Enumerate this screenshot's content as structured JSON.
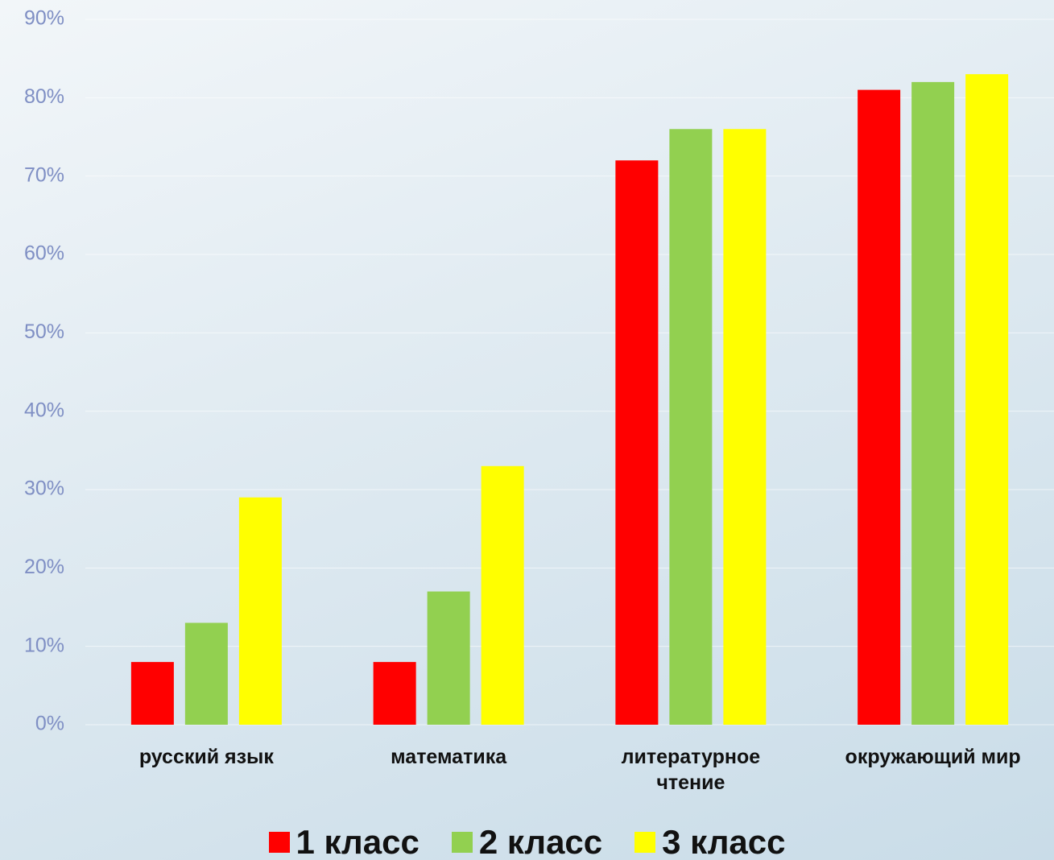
{
  "chart_data": {
    "type": "bar",
    "categories": [
      "русский язык",
      "математика",
      "литературное чтение",
      "окружающий мир"
    ],
    "series": [
      {
        "name": "1 класс",
        "color": "#ff0000",
        "values": [
          8,
          8,
          72,
          81
        ]
      },
      {
        "name": "2 класс",
        "color": "#92d050",
        "values": [
          13,
          17,
          76,
          82
        ]
      },
      {
        "name": "3 класс",
        "color": "#ffff00",
        "values": [
          29,
          33,
          76,
          83
        ]
      }
    ],
    "ylim": [
      0,
      90
    ],
    "yticks": [
      {
        "value": 0,
        "label": "0%"
      },
      {
        "value": 10,
        "label": "10%"
      },
      {
        "value": 20,
        "label": "20%"
      },
      {
        "value": 30,
        "label": "30%"
      },
      {
        "value": 40,
        "label": "40%"
      },
      {
        "value": 50,
        "label": "50%"
      },
      {
        "value": 60,
        "label": "60%"
      },
      {
        "value": 70,
        "label": "70%"
      },
      {
        "value": 80,
        "label": "80%"
      },
      {
        "value": 90,
        "label": "90%"
      }
    ],
    "grid": true,
    "legend": "bottom"
  }
}
